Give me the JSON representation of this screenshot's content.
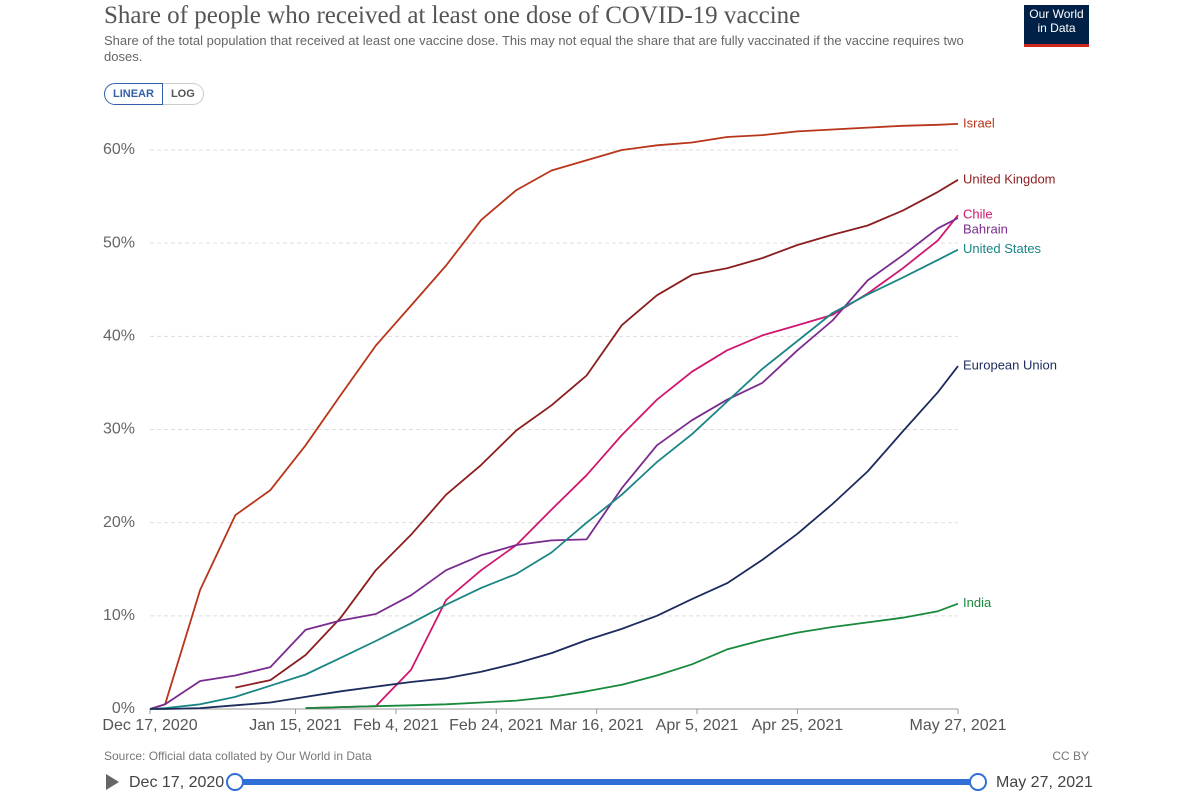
{
  "chart_data": {
    "type": "line",
    "title": "Share of people who received at least one dose of COVID-19 vaccine",
    "subtitle": "Share of the total population that received at least one vaccine dose. This may not equal the share that are fully vaccinated if the vaccine requires two doses.",
    "source": "Source: Official data collated by Our World in Data",
    "license": "CC BY",
    "x": [
      "2020-12-17",
      "2020-12-20",
      "2020-12-27",
      "2021-01-03",
      "2021-01-10",
      "2021-01-17",
      "2021-01-24",
      "2021-01-31",
      "2021-02-07",
      "2021-02-14",
      "2021-02-21",
      "2021-02-28",
      "2021-03-07",
      "2021-03-14",
      "2021-03-21",
      "2021-03-28",
      "2021-04-04",
      "2021-04-11",
      "2021-04-18",
      "2021-04-25",
      "2021-05-02",
      "2021-05-09",
      "2021-05-16",
      "2021-05-23",
      "2021-05-27"
    ],
    "xlim": [
      "2020-12-17",
      "2021-05-27"
    ],
    "xticks": [
      {
        "value": "2020-12-17",
        "label": "Dec 17, 2020"
      },
      {
        "value": "2021-01-15",
        "label": "Jan 15, 2021"
      },
      {
        "value": "2021-02-04",
        "label": "Feb 4, 2021"
      },
      {
        "value": "2021-02-24",
        "label": "Feb 24, 2021"
      },
      {
        "value": "2021-03-16",
        "label": "Mar 16, 2021"
      },
      {
        "value": "2021-04-05",
        "label": "Apr 5, 2021"
      },
      {
        "value": "2021-04-25",
        "label": "Apr 25, 2021"
      },
      {
        "value": "2021-05-27",
        "label": "May 27, 2021"
      }
    ],
    "ylim": [
      0,
      65
    ],
    "yticks": [
      {
        "value": 0,
        "label": "0%"
      },
      {
        "value": 10,
        "label": "10%"
      },
      {
        "value": 20,
        "label": "20%"
      },
      {
        "value": 30,
        "label": "30%"
      },
      {
        "value": 40,
        "label": "40%"
      },
      {
        "value": 50,
        "label": "50%"
      },
      {
        "value": 60,
        "label": "60%"
      }
    ],
    "grid": true,
    "series": [
      {
        "name": "Israel",
        "color": "#b8351a",
        "values": [
          0,
          0.5,
          12.8,
          20.8,
          23.5,
          28.3,
          33.7,
          39,
          43.3,
          47.6,
          52.5,
          55.7,
          57.8,
          58.9,
          60,
          60.5,
          60.8,
          61.4,
          61.6,
          62,
          62.2,
          62.4,
          62.6,
          62.7,
          62.8
        ]
      },
      {
        "name": "United Kingdom",
        "color": "#8b1f1f",
        "values": [
          null,
          null,
          null,
          2.3,
          3.1,
          5.8,
          9.8,
          14.9,
          18.7,
          23,
          26.2,
          29.9,
          32.6,
          35.8,
          41.2,
          44.4,
          46.6,
          47.3,
          48.4,
          49.8,
          50.9,
          51.9,
          53.5,
          55.5,
          56.8
        ]
      },
      {
        "name": "Chile",
        "color": "#d0176f",
        "values": [
          null,
          null,
          null,
          null,
          null,
          0.1,
          0.2,
          0.3,
          4.2,
          11.7,
          14.9,
          17.6,
          21.4,
          25.1,
          29.4,
          33.2,
          36.2,
          38.5,
          40.1,
          41.2,
          42.3,
          44.6,
          47.3,
          50.3,
          53
        ]
      },
      {
        "name": "Bahrain",
        "color": "#7a2b8e",
        "values": [
          0,
          0.5,
          3,
          3.6,
          4.5,
          8.5,
          9.5,
          10.2,
          12.2,
          14.9,
          16.5,
          17.6,
          18.1,
          18.2,
          23.7,
          28.3,
          31,
          33.2,
          35,
          38.5,
          41.7,
          46,
          48.7,
          51.6,
          52.7
        ]
      },
      {
        "name": "United States",
        "color": "#1a8585",
        "values": [
          0,
          0.1,
          0.5,
          1.3,
          2.5,
          3.7,
          5.5,
          7.3,
          9.2,
          11.2,
          13,
          14.5,
          16.8,
          20,
          23,
          26.5,
          29.5,
          33,
          36.5,
          39.5,
          42.5,
          44.5,
          46.3,
          48.2,
          49.3
        ]
      },
      {
        "name": "European Union",
        "color": "#1c2b5c",
        "values": [
          0,
          0,
          0.1,
          0.4,
          0.7,
          1.3,
          1.9,
          2.4,
          2.9,
          3.3,
          4,
          4.9,
          6,
          7.4,
          8.6,
          10,
          11.8,
          13.5,
          16,
          18.8,
          22,
          25.5,
          29.8,
          34,
          36.8
        ]
      },
      {
        "name": "India",
        "color": "#188a3c",
        "values": [
          null,
          null,
          null,
          null,
          null,
          0.1,
          0.2,
          0.3,
          0.4,
          0.5,
          0.7,
          0.9,
          1.3,
          1.9,
          2.6,
          3.6,
          4.8,
          6.4,
          7.4,
          8.2,
          8.8,
          9.3,
          9.8,
          10.5,
          11.3
        ]
      }
    ]
  },
  "logo": [
    "Our World",
    "in Data"
  ],
  "controls": {
    "scale_buttons": [
      "LINEAR",
      "LOG"
    ],
    "timeline_start": "Dec 17, 2020",
    "timeline_end": "May 27, 2021"
  }
}
